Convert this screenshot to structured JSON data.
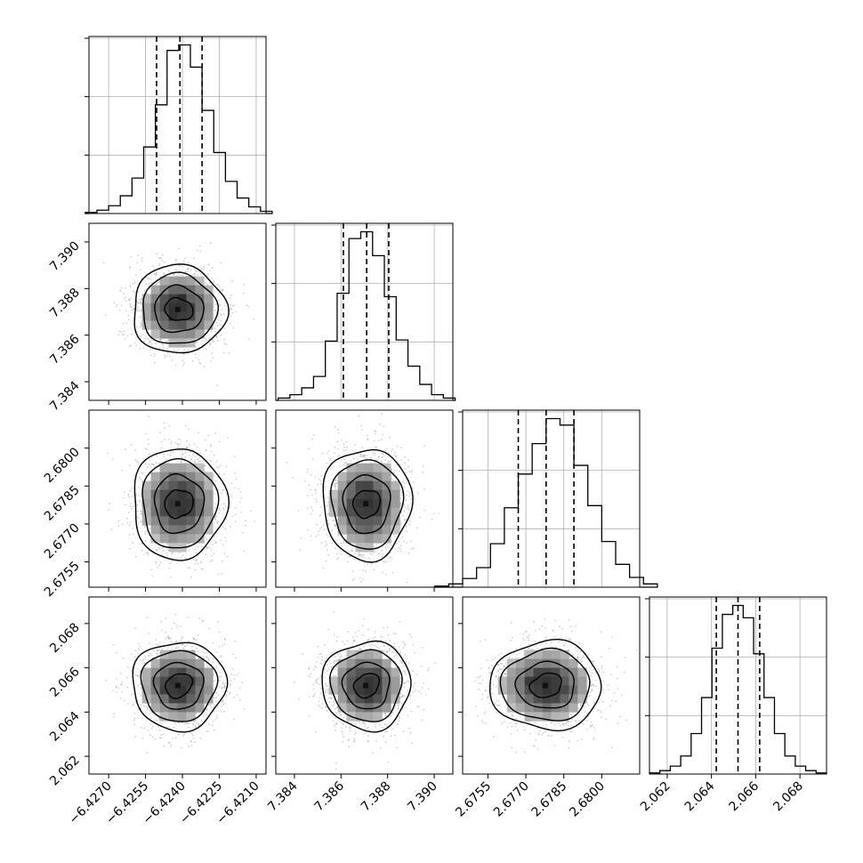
{
  "chart_data": {
    "type": "corner",
    "grid": true,
    "colors": {
      "line": "#000000",
      "grid": "#b0b0b0",
      "points": "#9a9a9a",
      "background": "#ffffff"
    },
    "parameters": [
      {
        "range": [
          -6.4278,
          -6.4206
        ],
        "mean": -6.42415,
        "std": 0.00095,
        "quantiles": [
          -6.42505,
          -6.4241,
          -6.4232
        ],
        "ticks": [
          -6.427,
          -6.4255,
          -6.424,
          -6.4225,
          -6.421
        ],
        "tick_labels": [
          "−6.4270",
          "−6.4255",
          "−6.4240",
          "−6.4225",
          "−6.4210"
        ],
        "hist_counts": [
          1,
          3,
          7,
          16,
          32,
          60,
          98,
          147,
          152,
          132,
          93,
          55,
          29,
          14,
          6,
          2
        ]
      },
      {
        "range": [
          7.3832,
          7.3908
        ],
        "mean": 7.3871,
        "std": 0.00095,
        "quantiles": [
          7.3861,
          7.3871,
          7.38805
        ],
        "ticks": [
          7.384,
          7.386,
          7.388,
          7.39
        ],
        "tick_labels": [
          "7.384",
          "7.386",
          "7.388",
          "7.390"
        ],
        "hist_counts": [
          2,
          5,
          11,
          21,
          52,
          94,
          142,
          148,
          127,
          91,
          53,
          30,
          14,
          5,
          2
        ]
      },
      {
        "range": [
          2.6745,
          2.6815
        ],
        "mean": 2.6778,
        "std": 0.0011,
        "quantiles": [
          2.6767,
          2.6778,
          2.6789
        ],
        "ticks": [
          2.6755,
          2.677,
          2.6785,
          2.68
        ],
        "tick_labels": [
          "2.6755",
          "2.6770",
          "2.6785",
          "2.6800"
        ],
        "hist_counts": [
          1,
          3,
          8,
          18,
          40,
          73,
          104,
          132,
          155,
          149,
          112,
          75,
          42,
          21,
          9,
          3
        ]
      },
      {
        "range": [
          2.0612,
          2.0692
        ],
        "mean": 2.0652,
        "std": 0.001,
        "quantiles": [
          2.06422,
          2.0652,
          2.06618
        ],
        "ticks": [
          2.062,
          2.064,
          2.066,
          2.068
        ],
        "tick_labels": [
          "2.062",
          "2.064",
          "2.066",
          "2.068"
        ],
        "hist_counts": [
          1,
          3,
          7,
          16,
          36,
          68,
          112,
          142,
          150,
          139,
          107,
          68,
          36,
          16,
          7,
          3,
          1
        ]
      }
    ]
  }
}
